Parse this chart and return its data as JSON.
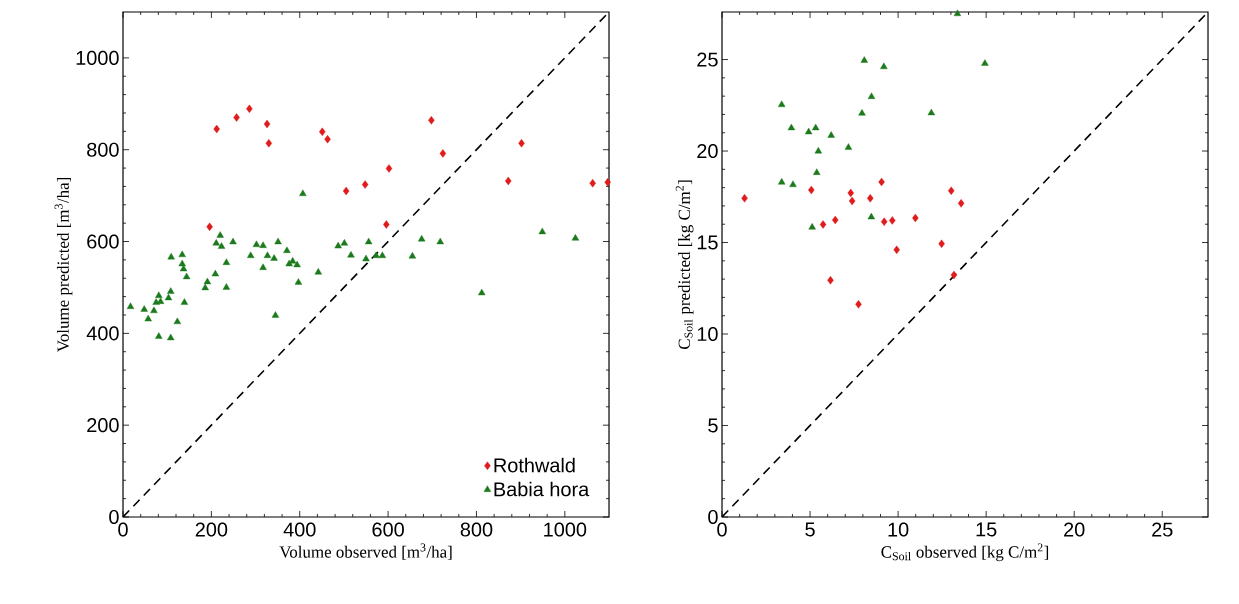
{
  "chart_data": [
    {
      "type": "scatter",
      "xlabel": "Volume observed [m$^{3}$/ha]",
      "ylabel": "Volume predicted [m$^{3}$/ha]",
      "xlim": [
        0,
        1100
      ],
      "ylim": [
        0,
        1100
      ],
      "xticks": [
        0,
        200,
        400,
        600,
        800,
        1000
      ],
      "yticks": [
        0,
        200,
        400,
        600,
        800,
        1000
      ],
      "grid": false,
      "legend": "bottom right",
      "series": [
        {
          "name": "Rothwald",
          "color": "#e01b1b",
          "marker": "diamond",
          "x": [
            212,
            257,
            286,
            326,
            330,
            451,
            463,
            698,
            724,
            602,
            548,
            505,
            902,
            872,
            1063,
            1097,
            196,
            596
          ],
          "values": [
            845,
            870,
            889,
            856,
            814,
            839,
            823,
            864,
            792,
            759,
            724,
            710,
            814,
            732,
            727,
            729,
            632,
            637
          ]
        },
        {
          "name": "Babia hora",
          "color": "#1b7a1b",
          "marker": "triangle",
          "x": [
            407,
            220,
            211,
            223,
            249,
            302,
            317,
            351,
            371,
            289,
            327,
            342,
            376,
            384,
            394,
            234,
            317,
            397,
            442,
            487,
            501,
            556,
            516,
            550,
            573,
            587,
            655,
            676,
            718,
            949,
            1024,
            812,
            345,
            109,
            134,
            134,
            137,
            144,
            209,
            191,
            186,
            234,
            108,
            103,
            81,
            85,
            75,
            70,
            17,
            48,
            57,
            139,
            123,
            81,
            108
          ],
          "values": [
            704,
            613,
            596,
            589,
            599,
            593,
            591,
            599,
            580,
            569,
            569,
            563,
            551,
            557,
            549,
            554,
            543,
            511,
            533,
            590,
            596,
            599,
            570,
            562,
            569,
            569,
            568,
            605,
            599,
            621,
            607,
            488,
            439,
            566,
            571,
            551,
            540,
            523,
            529,
            512,
            499,
            500,
            491,
            477,
            482,
            469,
            467,
            449,
            458,
            452,
            431,
            467,
            425,
            393,
            390
          ]
        },
        {
          "type": "line",
          "color": "#000000",
          "line_style": "dashed",
          "x": [
            0,
            1100
          ],
          "values": [
            0,
            1100
          ]
        }
      ]
    },
    {
      "type": "scatter",
      "xlabel": "C$_{Soil}$ observed [kg C/m$^{2}$]",
      "ylabel": "C$_{Soil}$ predicted [kg C/m$^{2}$]",
      "xlim": [
        0,
        27.6
      ],
      "ylim": [
        0,
        27.6
      ],
      "xticks": [
        0,
        5,
        10,
        15,
        20,
        25
      ],
      "yticks": [
        0,
        5,
        10,
        15,
        20,
        25
      ],
      "grid": false,
      "series": [
        {
          "color": "#e01b1b",
          "marker": "diamond",
          "x": [
            1.28,
            5.07,
            7.31,
            7.39,
            8.42,
            9.06,
            13.02,
            13.58,
            5.74,
            6.43,
            9.21,
            9.67,
            10.98,
            9.92,
            12.47,
            6.16,
            7.75,
            13.17
          ],
          "values": [
            17.42,
            17.87,
            17.71,
            17.27,
            17.42,
            18.31,
            17.83,
            17.14,
            15.99,
            16.23,
            16.14,
            16.21,
            16.34,
            14.6,
            14.93,
            12.94,
            11.62,
            13.23
          ]
        },
        {
          "color": "#1b7a1b",
          "marker": "triangle",
          "x": [
            13.37,
            8.08,
            9.19,
            14.93,
            8.49,
            3.39,
            7.95,
            11.89,
            3.94,
            4.92,
            5.32,
            6.2,
            7.18,
            5.47,
            5.38,
            3.39,
            4.03,
            8.48,
            5.12
          ],
          "values": [
            27.5,
            24.95,
            24.6,
            24.78,
            22.97,
            22.53,
            22.06,
            22.08,
            21.26,
            21.04,
            21.26,
            20.85,
            20.19,
            19.99,
            18.82,
            18.29,
            18.16,
            16.39,
            15.83
          ]
        },
        {
          "type": "line",
          "color": "#000000",
          "line_style": "dashed",
          "x": [
            0,
            27.6
          ],
          "values": [
            0,
            27.6
          ]
        }
      ]
    }
  ]
}
